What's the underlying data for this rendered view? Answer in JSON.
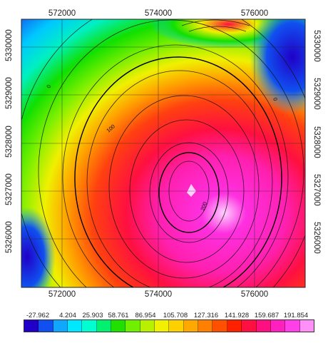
{
  "map": {
    "x_ticks_top": [
      "572000",
      "574000",
      "576000"
    ],
    "x_ticks_bottom": [
      "572000",
      "574000",
      "576000"
    ],
    "y_ticks_left": [
      "5330000",
      "5329000",
      "5328000",
      "5327000",
      "5326000"
    ],
    "y_ticks_right": [
      "5330000",
      "5329000",
      "5328000",
      "5327000",
      "5326000"
    ],
    "x_range": [
      571200,
      577000
    ],
    "y_range": [
      5325000,
      5330600
    ],
    "contour_labels": [
      "0",
      "0",
      "100",
      "200"
    ],
    "colors": {
      "low": "#1a00c8",
      "mid_low": "#00d8ff",
      "mid": "#18e800",
      "mid_high": "#ffd000",
      "high": "#ff1030",
      "peak": "#ff30d8",
      "extreme": "#ffd0ff"
    }
  },
  "colorbar": {
    "labels": [
      "-27.962",
      "4.204",
      "25.903",
      "58.761",
      "86.954",
      "105.708",
      "127.316",
      "141.928",
      "159.687",
      "191.854"
    ],
    "swatches": [
      "#2000c8",
      "#1050f0",
      "#10a8ff",
      "#00e8ff",
      "#00ffd0",
      "#00f070",
      "#20e000",
      "#70f000",
      "#b8f000",
      "#f0f000",
      "#ffd000",
      "#ffa800",
      "#ff8000",
      "#ff5000",
      "#ff2000",
      "#ff1040",
      "#ff1080",
      "#ff20c0",
      "#ff40e8",
      "#ff90f8"
    ]
  }
}
